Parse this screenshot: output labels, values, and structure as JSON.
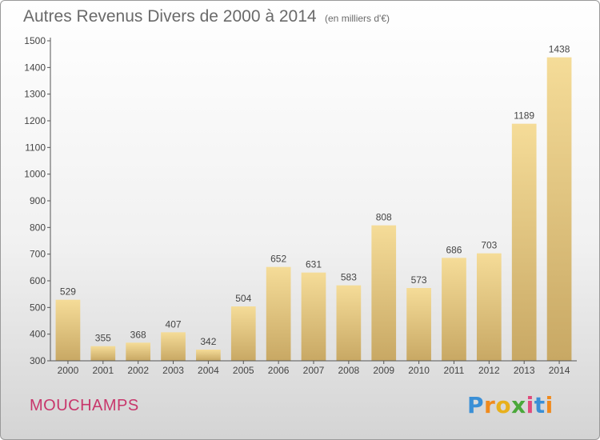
{
  "header": {
    "title": "Autres Revenus Divers de 2000 à 2014",
    "unit": "(en milliers d'€)"
  },
  "footer": {
    "commune": "MOUCHAMPS",
    "logo_text": "Proxiti",
    "logo_letters": [
      "P",
      "r",
      "o",
      "x",
      "i",
      "t",
      "i"
    ],
    "logo_colors": [
      "#3a8fd6",
      "#f08a1c",
      "#e8b01c",
      "#4aa83a",
      "#e04a7c",
      "#3a8fd6",
      "#f08a1c"
    ]
  },
  "colors": {
    "bar_light": "#f5dc98",
    "bar_dark": "#c8a864",
    "axis": "#555555",
    "text": "#444444",
    "commune": "#c8366b"
  },
  "chart_data": {
    "type": "bar",
    "title": "Autres Revenus Divers de 2000 à 2014",
    "subtitle": "(en milliers d'€)",
    "categories": [
      "2000",
      "2001",
      "2002",
      "2003",
      "2004",
      "2005",
      "2006",
      "2007",
      "2008",
      "2009",
      "2010",
      "2011",
      "2012",
      "2013",
      "2014"
    ],
    "values": [
      529,
      355,
      368,
      407,
      342,
      504,
      652,
      631,
      583,
      808,
      573,
      686,
      703,
      1189,
      1438
    ],
    "ylim": [
      300,
      1500
    ],
    "yticks": [
      300,
      400,
      500,
      600,
      700,
      800,
      900,
      1000,
      1100,
      1200,
      1300,
      1400,
      1500
    ],
    "data_labels": true,
    "grid": false,
    "legend": "none"
  }
}
